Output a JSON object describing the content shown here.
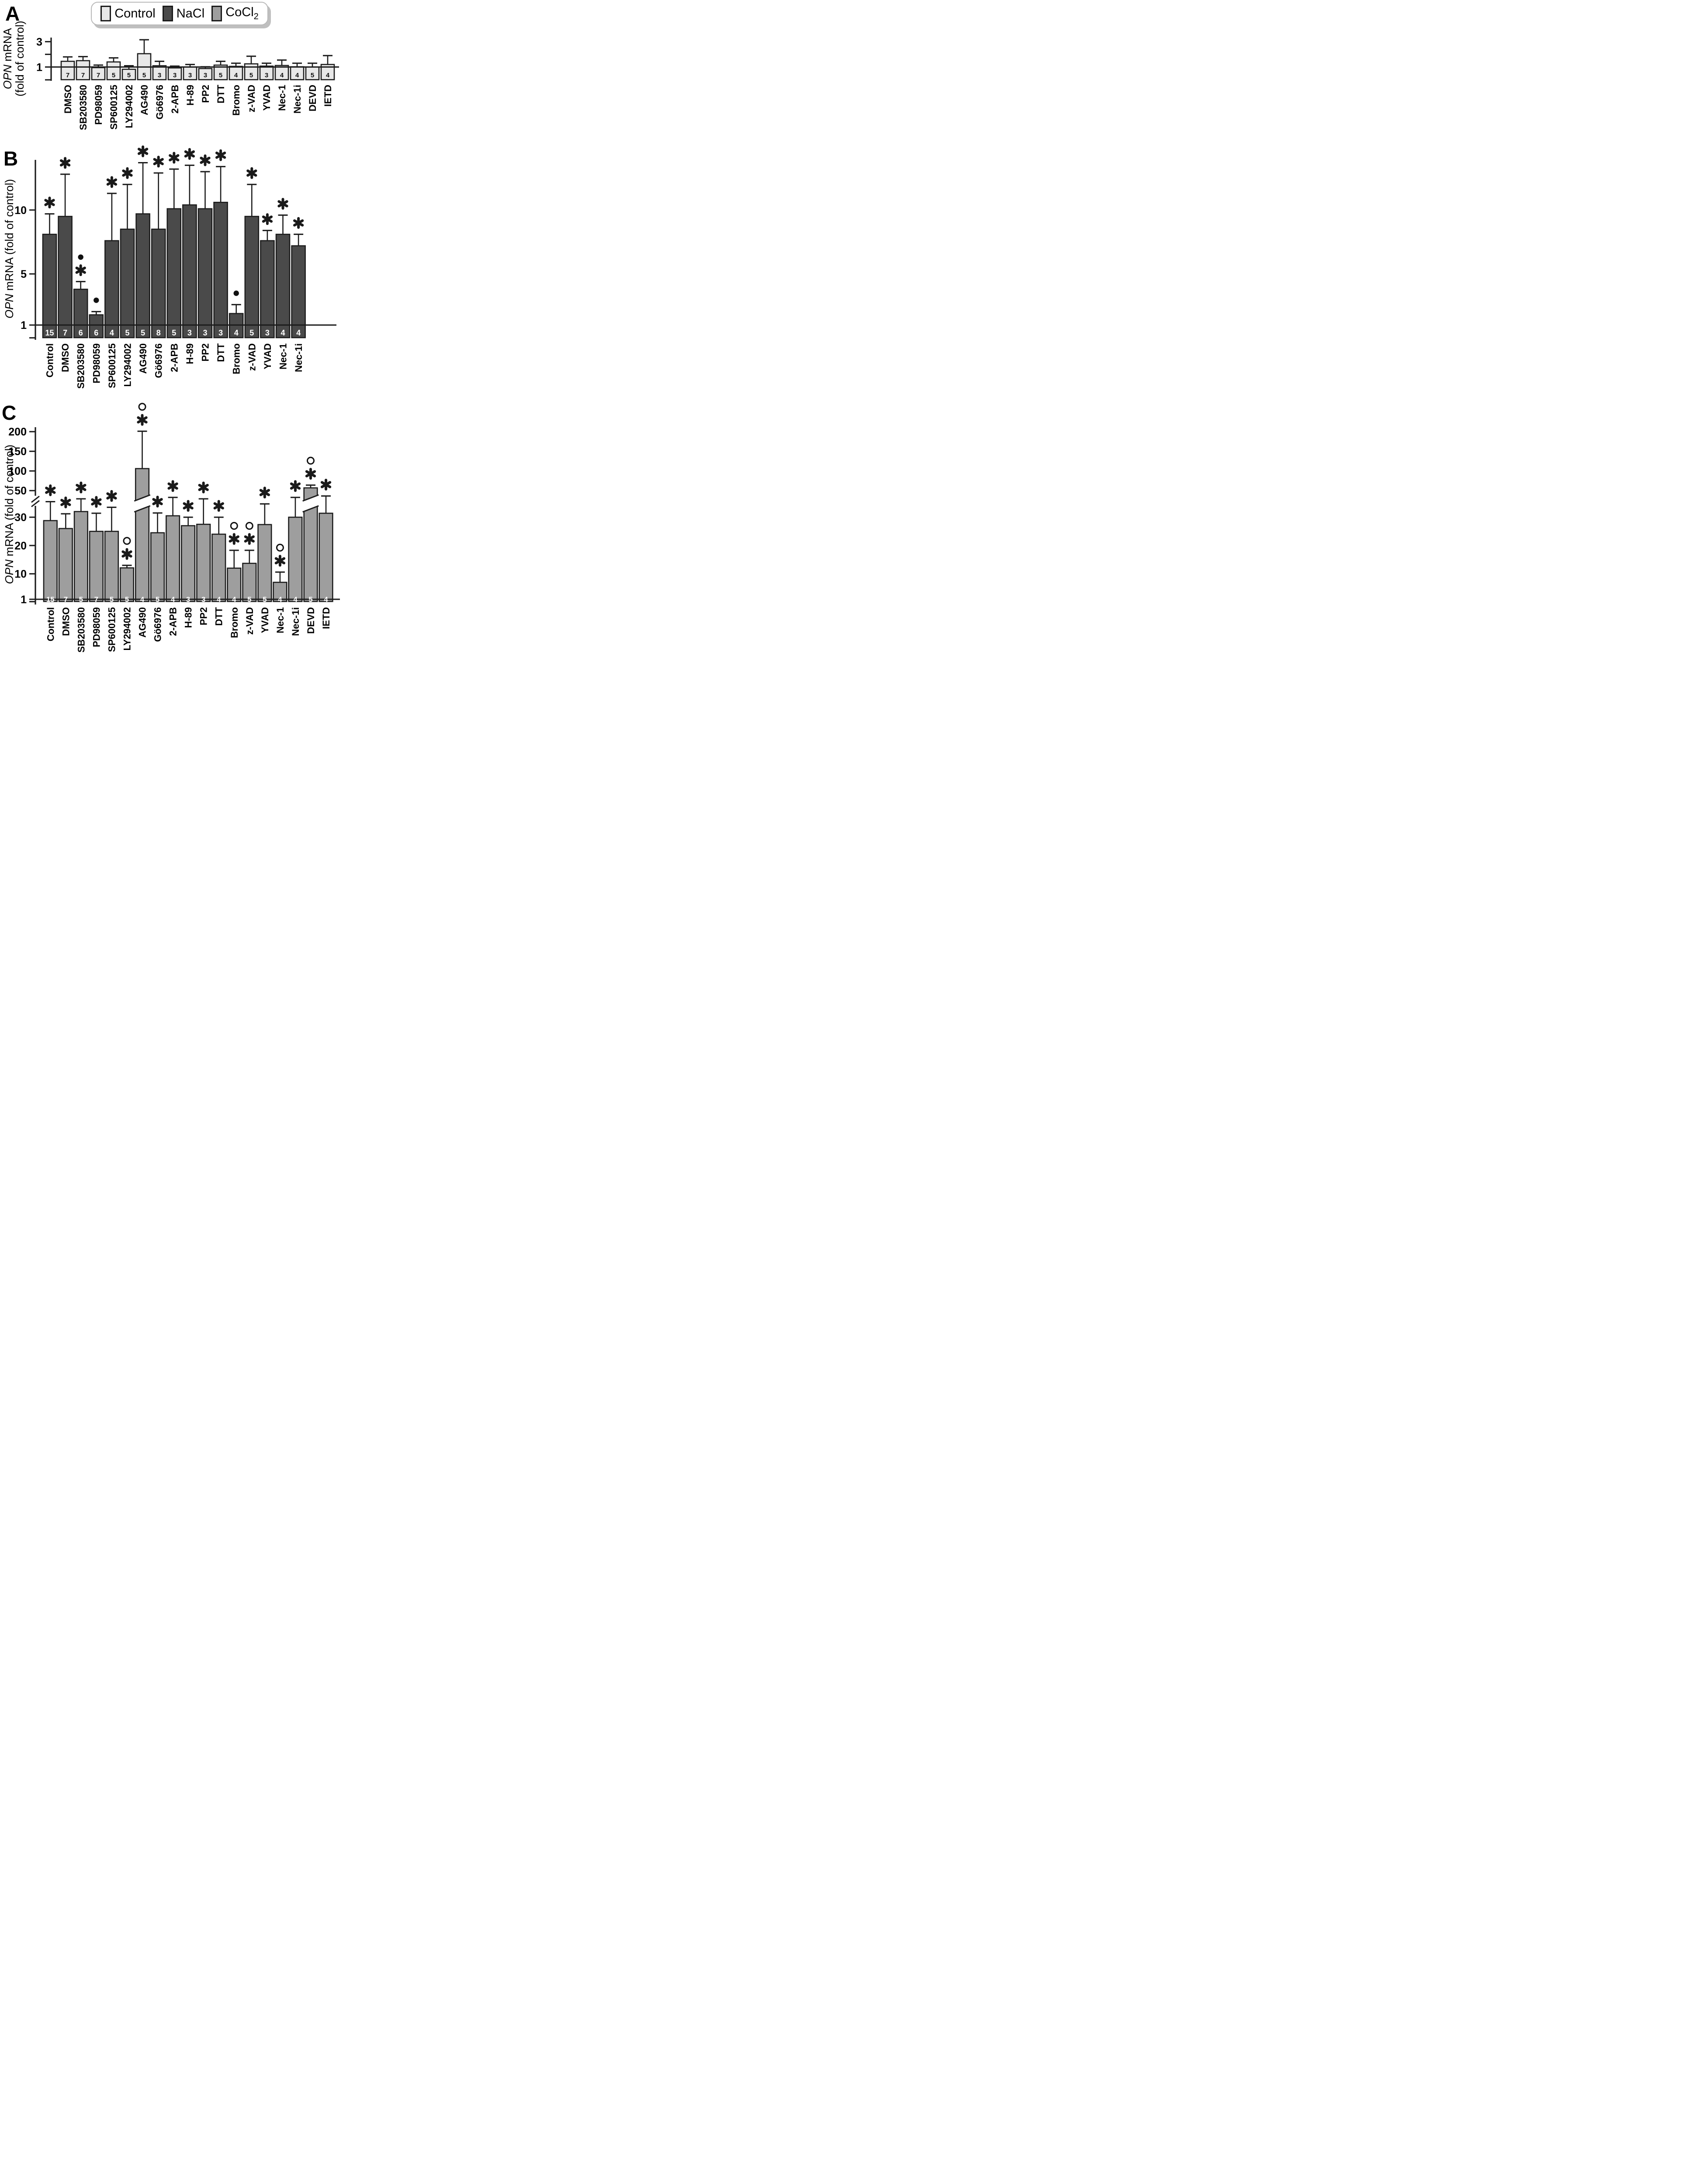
{
  "figure": {
    "panels_letters": [
      "A",
      "B",
      "C"
    ],
    "colors": {
      "control": "#e8e8e8",
      "nacl": "#4a4a4a",
      "cocl2": "#9e9e9e",
      "stroke": "#1c1c1c"
    }
  },
  "legend": {
    "items": [
      {
        "label_main": "Control",
        "label_sub": "",
        "color": "#e8e8e8"
      },
      {
        "label_main": "NaCl",
        "label_sub": "",
        "color": "#4a4a4a"
      },
      {
        "label_main": "CoCl",
        "label_sub": "2",
        "color": "#9e9e9e"
      }
    ]
  },
  "chart_data": [
    {
      "id": "A",
      "type": "bar",
      "series": "Control",
      "ylabel_lines": [
        "OPN mRNA",
        "(fold of control)"
      ],
      "ylabel_italic": "OPN",
      "axis": {
        "kind": "linear",
        "ymin": 0,
        "ymax": 3.3,
        "ticks": [
          {
            "v": 1,
            "label": "1"
          },
          {
            "v": 2,
            "label": ""
          },
          {
            "v": 3,
            "label": "3"
          }
        ],
        "reference_line_at": 1,
        "grid": false
      },
      "bars": [
        {
          "category": "DMSO",
          "value": 1.45,
          "err_top": 1.8,
          "n": 7,
          "markers": []
        },
        {
          "category": "SB203580",
          "value": 1.5,
          "err_top": 1.82,
          "n": 7,
          "markers": []
        },
        {
          "category": "PD98059",
          "value": 0.95,
          "err_top": 1.15,
          "n": 7,
          "markers": []
        },
        {
          "category": "SP600125",
          "value": 1.4,
          "err_top": 1.72,
          "n": 5,
          "markers": []
        },
        {
          "category": "LY294002",
          "value": 0.82,
          "err_top": 1.1,
          "n": 5,
          "markers": []
        },
        {
          "category": "AG490",
          "value": 2.05,
          "err_top": 3.15,
          "n": 5,
          "markers": []
        },
        {
          "category": "Gö6976",
          "value": 1.1,
          "err_top": 1.45,
          "n": 3,
          "markers": []
        },
        {
          "category": "2-APB",
          "value": 0.93,
          "err_top": 1.05,
          "n": 3,
          "markers": []
        },
        {
          "category": "H-89",
          "value": 1.0,
          "err_top": 1.2,
          "n": 3,
          "markers": []
        },
        {
          "category": "PP2",
          "value": 0.88,
          "err_top": 1.0,
          "n": 3,
          "markers": []
        },
        {
          "category": "DTT",
          "value": 1.15,
          "err_top": 1.45,
          "n": 5,
          "markers": []
        },
        {
          "category": "Bromo",
          "value": 1.05,
          "err_top": 1.3,
          "n": 4,
          "markers": []
        },
        {
          "category": "z-VAD",
          "value": 1.25,
          "err_top": 1.85,
          "n": 5,
          "markers": []
        },
        {
          "category": "YVAD",
          "value": 1.07,
          "err_top": 1.3,
          "n": 3,
          "markers": []
        },
        {
          "category": "Nec-1",
          "value": 1.12,
          "err_top": 1.55,
          "n": 4,
          "markers": []
        },
        {
          "category": "Nec-1i",
          "value": 1.02,
          "err_top": 1.3,
          "n": 4,
          "markers": []
        },
        {
          "category": "DEVD",
          "value": 1.0,
          "err_top": 1.3,
          "n": 5,
          "markers": []
        },
        {
          "category": "IETD",
          "value": 1.2,
          "err_top": 1.9,
          "n": 4,
          "markers": []
        }
      ]
    },
    {
      "id": "B",
      "type": "bar",
      "series": "NaCl",
      "ylabel_lines": [
        "OPN mRNA (fold of control)"
      ],
      "ylabel_italic": "OPN",
      "axis": {
        "kind": "linear",
        "ymin": 0,
        "ymax": 13.9,
        "ticks": [
          {
            "v": 1,
            "label": "1"
          },
          {
            "v": 5,
            "label": "5"
          },
          {
            "v": 10,
            "label": "10"
          }
        ],
        "reference_line_at": 1,
        "grid": false
      },
      "bars": [
        {
          "category": "Control",
          "value": 8.1,
          "err_top": 9.7,
          "n": 15,
          "markers": [
            "asterisk"
          ]
        },
        {
          "category": "DMSO",
          "value": 9.5,
          "err_top": 12.8,
          "n": 7,
          "markers": [
            "asterisk"
          ]
        },
        {
          "category": "SB203580",
          "value": 3.8,
          "err_top": 4.4,
          "n": 6,
          "markers": [
            "asterisk",
            "dot"
          ]
        },
        {
          "category": "PD98059",
          "value": 1.8,
          "err_top": 2.05,
          "n": 6,
          "markers": [
            "dot"
          ]
        },
        {
          "category": "SP600125",
          "value": 7.6,
          "err_top": 11.3,
          "n": 4,
          "markers": [
            "asterisk"
          ]
        },
        {
          "category": "LY294002",
          "value": 8.5,
          "err_top": 12.0,
          "n": 5,
          "markers": [
            "asterisk"
          ]
        },
        {
          "category": "AG490",
          "value": 9.7,
          "err_top": 13.7,
          "n": 5,
          "markers": [
            "asterisk"
          ]
        },
        {
          "category": "Gö6976",
          "value": 8.5,
          "err_top": 12.9,
          "n": 8,
          "markers": [
            "asterisk"
          ]
        },
        {
          "category": "2-APB",
          "value": 10.1,
          "err_top": 13.2,
          "n": 5,
          "markers": [
            "asterisk"
          ]
        },
        {
          "category": "H-89",
          "value": 10.4,
          "err_top": 13.5,
          "n": 3,
          "markers": [
            "asterisk"
          ]
        },
        {
          "category": "PP2",
          "value": 10.1,
          "err_top": 13.0,
          "n": 3,
          "markers": [
            "asterisk"
          ]
        },
        {
          "category": "DTT",
          "value": 10.6,
          "err_top": 13.4,
          "n": 3,
          "markers": [
            "asterisk"
          ]
        },
        {
          "category": "Bromo",
          "value": 1.9,
          "err_top": 2.6,
          "n": 4,
          "markers": [
            "dot"
          ]
        },
        {
          "category": "z-VAD",
          "value": 9.5,
          "err_top": 12.0,
          "n": 5,
          "markers": [
            "asterisk"
          ]
        },
        {
          "category": "YVAD",
          "value": 7.6,
          "err_top": 8.4,
          "n": 3,
          "markers": [
            "asterisk"
          ]
        },
        {
          "category": "Nec-1",
          "value": 8.1,
          "err_top": 9.6,
          "n": 4,
          "markers": [
            "asterisk"
          ]
        },
        {
          "category": "Nec-1i",
          "value": 7.2,
          "err_top": 8.1,
          "n": 4,
          "markers": [
            "asterisk"
          ]
        }
      ]
    },
    {
      "id": "C",
      "type": "bar",
      "series": "CoCl2",
      "ylabel_lines": [
        "OPN mRNA (fold of control)"
      ],
      "ylabel_italic": "OPN",
      "axis": {
        "kind": "broken-linear",
        "ymin": 1,
        "break_between": [
          38,
          50
        ],
        "ymax": 215,
        "ticks": [
          {
            "v": 1,
            "label": "1"
          },
          {
            "v": 10,
            "label": "10"
          },
          {
            "v": 20,
            "label": "20"
          },
          {
            "v": 30,
            "label": "30"
          },
          {
            "v": 50,
            "label": "50"
          },
          {
            "v": 100,
            "label": "100"
          },
          {
            "v": 150,
            "label": "150"
          },
          {
            "v": 200,
            "label": "200"
          }
        ],
        "reference_line_at": 1,
        "grid": false
      },
      "bars": [
        {
          "category": "Control",
          "value": 28.8,
          "err_top": 35.5,
          "n": 15,
          "markers": [
            "asterisk"
          ]
        },
        {
          "category": "DMSO",
          "value": 26.0,
          "err_top": 31.2,
          "n": 7,
          "markers": [
            "asterisk"
          ]
        },
        {
          "category": "SB203580",
          "value": 32.0,
          "err_top": 36.5,
          "n": 5,
          "markers": [
            "asterisk"
          ]
        },
        {
          "category": "PD98059",
          "value": 25.0,
          "err_top": 31.4,
          "n": 7,
          "markers": [
            "asterisk"
          ]
        },
        {
          "category": "SP600125",
          "value": 25.0,
          "err_top": 33.5,
          "n": 5,
          "markers": [
            "asterisk"
          ]
        },
        {
          "category": "LY294002",
          "value": 12.1,
          "err_top": 13.0,
          "n": 5,
          "markers": [
            "asterisk",
            "circle"
          ]
        },
        {
          "category": "AG490",
          "value": 106,
          "err_top": 201,
          "n": 4,
          "markers": [
            "asterisk",
            "circle"
          ],
          "crosses_break": true
        },
        {
          "category": "Gö6976",
          "value": 24.5,
          "err_top": 31.5,
          "n": 5,
          "markers": [
            "asterisk"
          ]
        },
        {
          "category": "2-APB",
          "value": 30.5,
          "err_top": 37.0,
          "n": 4,
          "markers": [
            "asterisk"
          ]
        },
        {
          "category": "H-89",
          "value": 27.0,
          "err_top": 30.0,
          "n": 3,
          "markers": [
            "asterisk"
          ]
        },
        {
          "category": "PP2",
          "value": 27.5,
          "err_top": 36.5,
          "n": 3,
          "markers": [
            "asterisk"
          ]
        },
        {
          "category": "DTT",
          "value": 24.0,
          "err_top": 30.0,
          "n": 4,
          "markers": [
            "asterisk"
          ]
        },
        {
          "category": "Bromo",
          "value": 12.0,
          "err_top": 18.3,
          "n": 4,
          "markers": [
            "asterisk",
            "circle"
          ]
        },
        {
          "category": "z-VAD",
          "value": 13.7,
          "err_top": 18.3,
          "n": 5,
          "markers": [
            "asterisk",
            "circle"
          ]
        },
        {
          "category": "YVAD",
          "value": 27.4,
          "err_top": 34.7,
          "n": 5,
          "markers": [
            "asterisk"
          ]
        },
        {
          "category": "Nec-1",
          "value": 7.0,
          "err_top": 10.6,
          "n": 4,
          "markers": [
            "asterisk",
            "circle"
          ]
        },
        {
          "category": "Nec-1i",
          "value": 30.0,
          "err_top": 37.0,
          "n": 4,
          "markers": [
            "asterisk"
          ]
        },
        {
          "category": "DEVD",
          "value": 57.0,
          "err_top": 64.0,
          "n": 5,
          "markers": [
            "asterisk",
            "circle"
          ],
          "crosses_break": true
        },
        {
          "category": "IETD",
          "value": 31.4,
          "err_top": 37.5,
          "n": 4,
          "markers": [
            "asterisk"
          ]
        }
      ]
    }
  ]
}
